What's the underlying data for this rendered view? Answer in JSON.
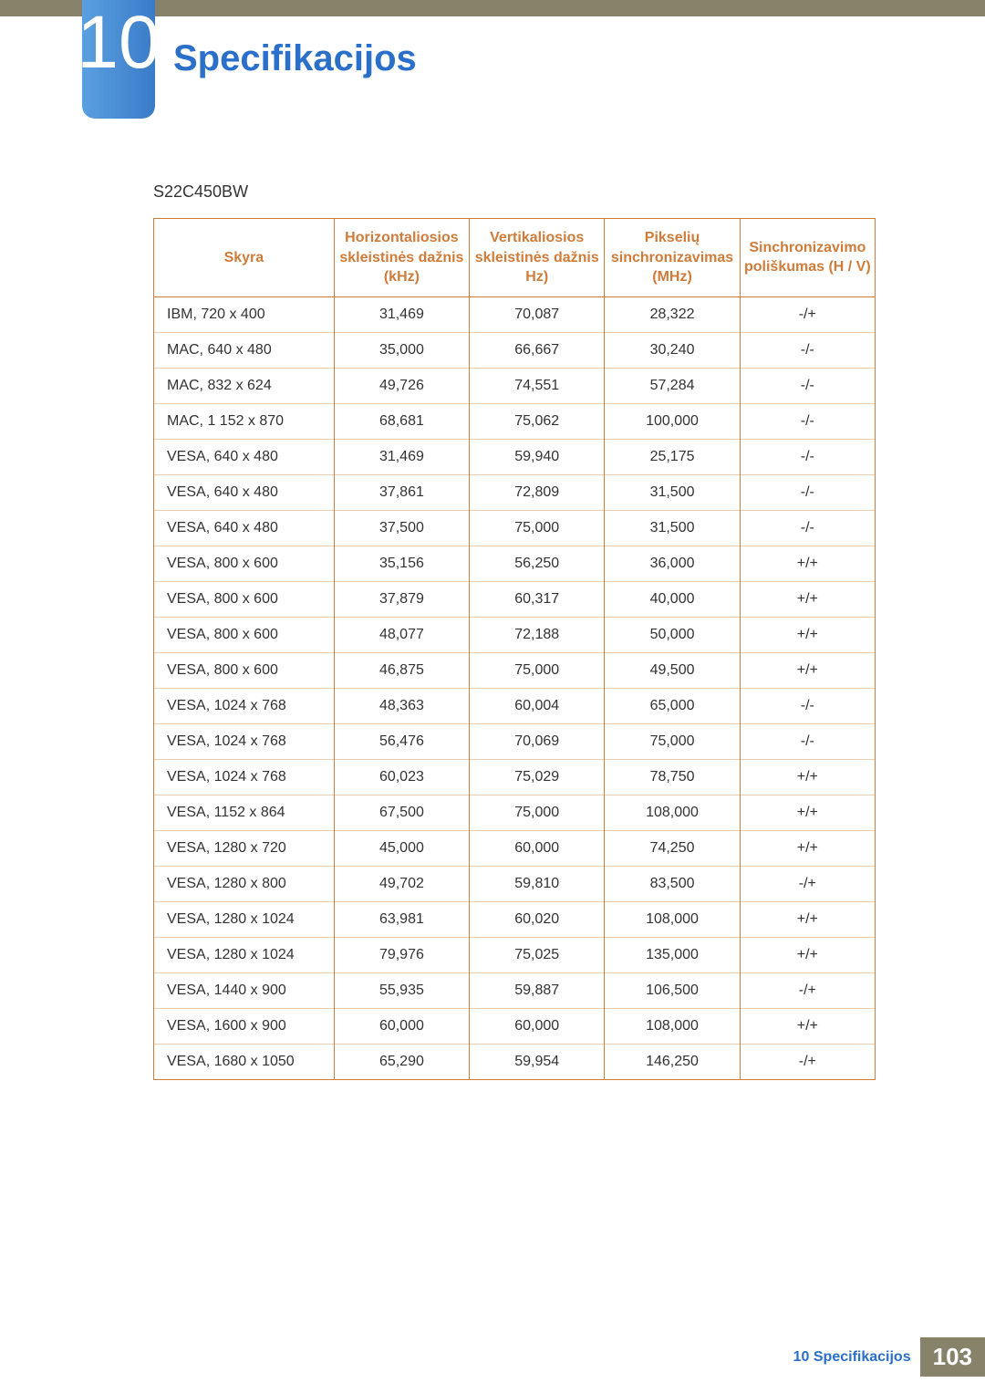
{
  "chapter": {
    "number": "10",
    "title": "Specifikacijos"
  },
  "model": "S22C450BW",
  "table": {
    "columns": [
      "Skyra",
      "Horizontaliosios skleistinės dažnis (kHz)",
      "Vertikaliosios skleistinės dažnis Hz)",
      "Pikselių sinchronizavimas (MHz)",
      "Sinchronizavimo poliškumas (H / V)"
    ],
    "col_widths": [
      "25%",
      "18.75%",
      "18.75%",
      "18.75%",
      "18.75%"
    ],
    "header_color": "#cf7b3a",
    "border_color": "#cf7b3a",
    "row_border_color": "#e9cdb3",
    "rows": [
      [
        "IBM, 720 x 400",
        "31,469",
        "70,087",
        "28,322",
        "-/+"
      ],
      [
        "MAC, 640 x 480",
        "35,000",
        "66,667",
        "30,240",
        "-/-"
      ],
      [
        "MAC, 832 x 624",
        "49,726",
        "74,551",
        "57,284",
        "-/-"
      ],
      [
        "MAC, 1 152 x 870",
        "68,681",
        "75,062",
        "100,000",
        "-/-"
      ],
      [
        "VESA, 640 x 480",
        "31,469",
        "59,940",
        "25,175",
        "-/-"
      ],
      [
        "VESA, 640 x 480",
        "37,861",
        "72,809",
        "31,500",
        "-/-"
      ],
      [
        "VESA, 640 x 480",
        "37,500",
        "75,000",
        "31,500",
        "-/-"
      ],
      [
        "VESA, 800 x 600",
        "35,156",
        "56,250",
        "36,000",
        "+/+"
      ],
      [
        "VESA, 800 x 600",
        "37,879",
        "60,317",
        "40,000",
        "+/+"
      ],
      [
        "VESA, 800 x 600",
        "48,077",
        "72,188",
        "50,000",
        "+/+"
      ],
      [
        "VESA, 800 x 600",
        "46,875",
        "75,000",
        "49,500",
        "+/+"
      ],
      [
        "VESA, 1024 x 768",
        "48,363",
        "60,004",
        "65,000",
        "-/-"
      ],
      [
        "VESA, 1024 x 768",
        "56,476",
        "70,069",
        "75,000",
        "-/-"
      ],
      [
        "VESA, 1024 x 768",
        "60,023",
        "75,029",
        "78,750",
        "+/+"
      ],
      [
        "VESA, 1152 x 864",
        "67,500",
        "75,000",
        "108,000",
        "+/+"
      ],
      [
        "VESA, 1280 x 720",
        "45,000",
        "60,000",
        "74,250",
        "+/+"
      ],
      [
        "VESA, 1280 x 800",
        "49,702",
        "59,810",
        "83,500",
        "-/+"
      ],
      [
        "VESA, 1280 x 1024",
        "63,981",
        "60,020",
        "108,000",
        "+/+"
      ],
      [
        "VESA, 1280 x 1024",
        "79,976",
        "75,025",
        "135,000",
        "+/+"
      ],
      [
        "VESA, 1440 x 900",
        "55,935",
        "59,887",
        "106,500",
        "-/+"
      ],
      [
        "VESA, 1600 x 900",
        "60,000",
        "60,000",
        "108,000",
        "+/+"
      ],
      [
        "VESA, 1680 x 1050",
        "65,290",
        "59,954",
        "146,250",
        "-/+"
      ]
    ]
  },
  "footer": {
    "label": "10 Specifikacijos",
    "page": "103"
  },
  "colors": {
    "top_bar": "#87836b",
    "title": "#2a6fc9",
    "tab_gradient_from": "#5aa0e0",
    "tab_gradient_to": "#3a7bc8"
  }
}
